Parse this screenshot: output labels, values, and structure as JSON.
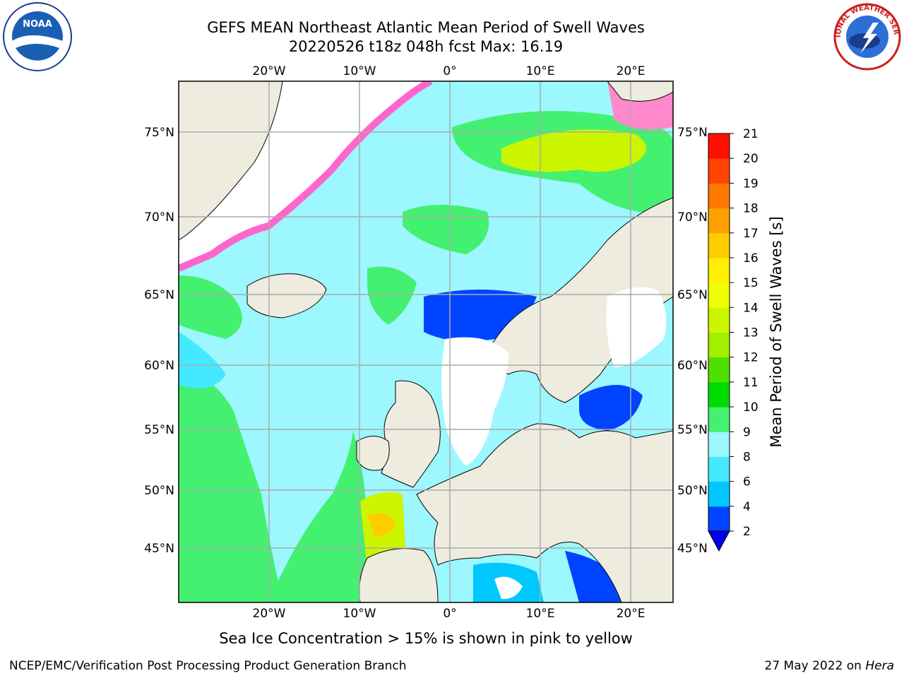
{
  "title": {
    "line1": "GEFS MEAN Northeast Atlantic Mean Period of Swell Waves",
    "line2": "20220526 t18z 048h fcst   Max: 16.19"
  },
  "map": {
    "lon_labels": [
      "20°W",
      "10°W",
      "0°",
      "10°E",
      "20°E"
    ],
    "lat_labels": [
      "75°N",
      "70°N",
      "65°N",
      "60°N",
      "55°N",
      "50°N",
      "45°N"
    ]
  },
  "colorbar": {
    "title": "Mean Period of Swell Waves [s]",
    "ticks": [
      "2",
      "4",
      "6",
      "8",
      "9",
      "10",
      "11",
      "12",
      "13",
      "14",
      "15",
      "16",
      "17",
      "18",
      "19",
      "20",
      "21"
    ],
    "colors": [
      "#0044ff",
      "#00c8ff",
      "#44e8ff",
      "#9cf7ff",
      "#44f070",
      "#00dc00",
      "#50e000",
      "#a0f000",
      "#ccf500",
      "#eeff00",
      "#fff000",
      "#ffcc00",
      "#ffa000",
      "#ff7800",
      "#ff4400",
      "#ff1000"
    ],
    "extend_color": "#0000ee"
  },
  "caption": "Sea Ice Concentration > 15% is shown in pink to yellow",
  "footer": {
    "left": "NCEP/EMC/Verification Post Processing Product Generation Branch",
    "right_date": "27 May 2022 on ",
    "right_host": "Hera"
  },
  "logos": {
    "noaa_text": "NOAA",
    "nws_text": "NATIONAL WEATHER SERVICE"
  }
}
